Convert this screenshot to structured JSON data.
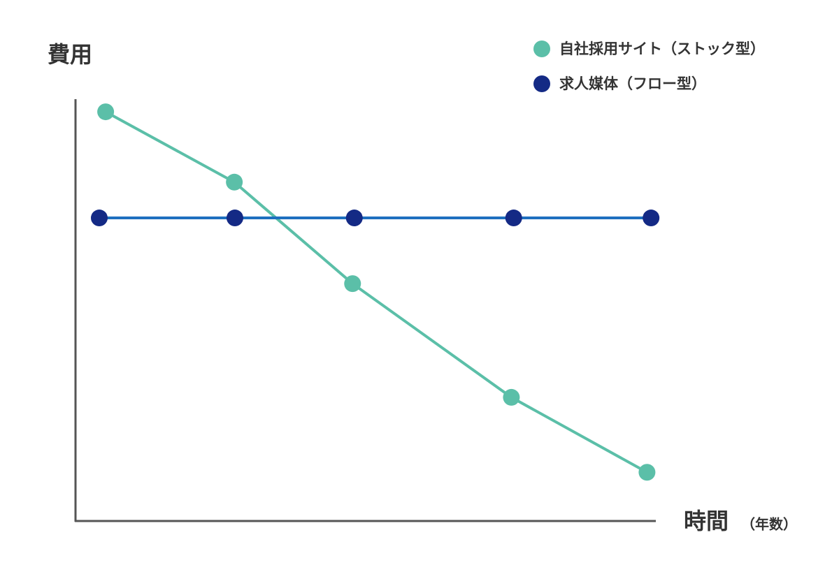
{
  "chart_data": {
    "type": "line",
    "y_label": "費用",
    "x_label": "時間",
    "x_label_sub": "（年数）",
    "xlim": [
      0,
      100
    ],
    "ylim": [
      0,
      100
    ],
    "legend": "top-right",
    "series": [
      {
        "name": "自社採用サイト（ストック型）",
        "color": "#5bbfa8",
        "line_color": "#5bbfa8",
        "x": [
          5.2,
          27.4,
          47.8,
          75.2,
          98.6
        ],
        "values": [
          97.0,
          80.3,
          56.2,
          29.2,
          11.4
        ]
      },
      {
        "name": "求人媒体（フロー型）",
        "color": "#142a85",
        "line_color": "#1e6fbf",
        "x": [
          4.1,
          27.5,
          48.1,
          75.6,
          99.3
        ],
        "values": [
          71.8,
          71.8,
          71.8,
          71.8,
          71.8
        ]
      }
    ]
  }
}
